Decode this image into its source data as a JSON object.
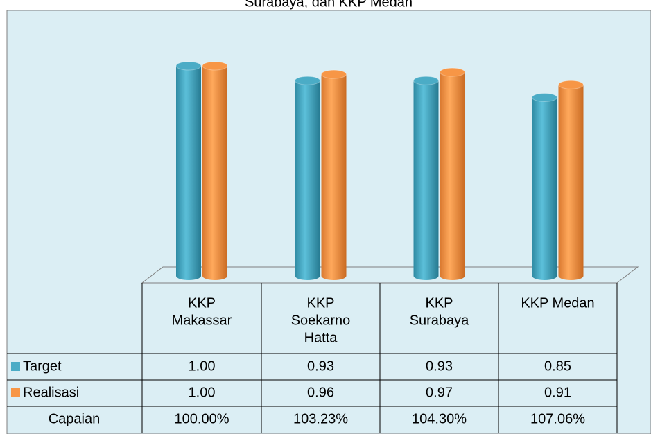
{
  "chart_data": {
    "type": "bar",
    "title": "Surabaya, dan KKP Medan",
    "categories": [
      [
        "KKP",
        "Makassar"
      ],
      [
        "KKP",
        "Soekarno",
        "Hatta"
      ],
      [
        "KKP",
        "Surabaya"
      ],
      [
        "KKP Medan"
      ]
    ],
    "series": [
      {
        "name": "Target",
        "color": "#4bacc6",
        "values": [
          1.0,
          0.93,
          0.93,
          0.85
        ],
        "value_labels": [
          "1.00",
          "0.93",
          "0.93",
          "0.85"
        ]
      },
      {
        "name": "Realisasi",
        "color": "#f79646",
        "values": [
          1.0,
          0.96,
          0.97,
          0.91
        ],
        "value_labels": [
          "1.00",
          "0.96",
          "0.97",
          "0.91"
        ]
      }
    ],
    "capaian": {
      "name": "Capaian",
      "values": [
        100.0,
        103.23,
        104.3,
        107.06
      ],
      "value_labels": [
        "100.00%",
        "103.23%",
        "104.30%",
        "107.06%"
      ]
    }
  }
}
